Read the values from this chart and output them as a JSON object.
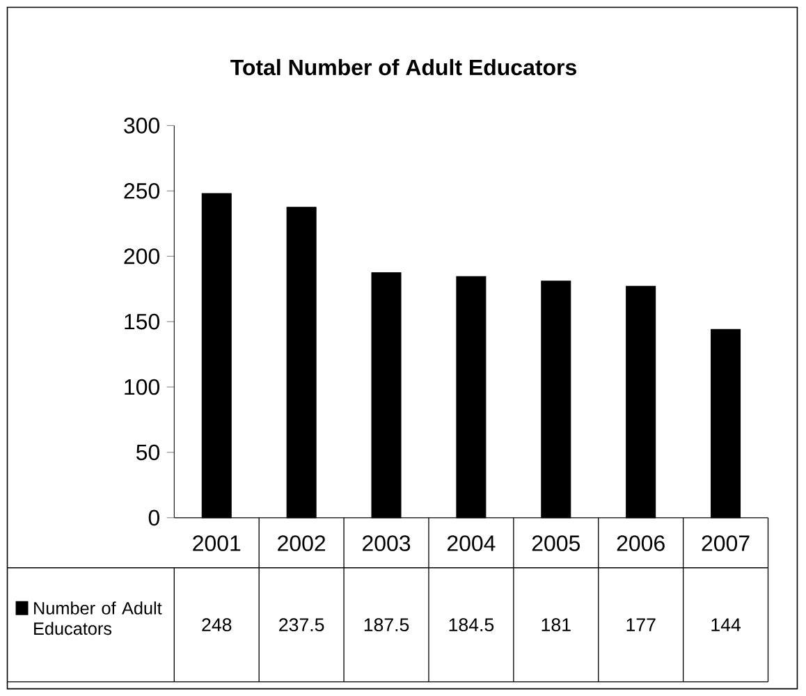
{
  "chart_data": {
    "type": "bar",
    "title": "Total Number of Adult Educators",
    "categories": [
      "2001",
      "2002",
      "2003",
      "2004",
      "2005",
      "2006",
      "2007"
    ],
    "series": [
      {
        "name": "Number of Adult Educators",
        "color": "#000000",
        "values": [
          248,
          237.5,
          187.5,
          184.5,
          181,
          177,
          144
        ]
      }
    ],
    "ylim": [
      0,
      300
    ],
    "yticks": [
      0,
      50,
      100,
      150,
      200,
      250,
      300
    ],
    "data_labels": true,
    "legend": "bottom"
  }
}
